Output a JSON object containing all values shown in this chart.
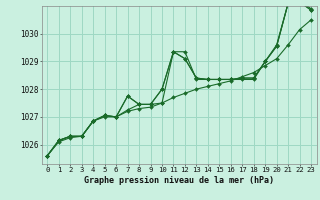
{
  "title": "Graphe pression niveau de la mer (hPa)",
  "bg_color": "#caf0e0",
  "grid_color": "#9ed8c4",
  "line_color": "#1a6b2a",
  "x_labels": [
    "0",
    "1",
    "2",
    "3",
    "4",
    "5",
    "6",
    "7",
    "8",
    "9",
    "10",
    "11",
    "12",
    "13",
    "14",
    "15",
    "16",
    "17",
    "18",
    "19",
    "20",
    "21",
    "22",
    "23"
  ],
  "ylim": [
    1025.3,
    1031.0
  ],
  "yticks": [
    1026,
    1027,
    1028,
    1029,
    1030
  ],
  "series": [
    [
      1025.6,
      1026.15,
      1026.3,
      1026.3,
      1026.85,
      1027.05,
      1027.0,
      1027.25,
      1027.45,
      1027.45,
      1027.5,
      1029.35,
      1029.35,
      1028.35,
      1028.35,
      1028.35,
      1028.35,
      1028.35,
      1028.35,
      1029.0,
      1029.6,
      1031.1,
      1031.2,
      1030.9
    ],
    [
      1025.6,
      1026.15,
      1026.3,
      1026.3,
      1026.85,
      1027.05,
      1027.0,
      1027.75,
      1027.45,
      1027.45,
      1028.0,
      1029.35,
      1029.1,
      1028.4,
      1028.35,
      1028.35,
      1028.35,
      1028.4,
      1028.4,
      1029.0,
      1029.55,
      1031.1,
      1031.15,
      1030.85
    ],
    [
      1025.6,
      1026.15,
      1026.3,
      1026.3,
      1026.85,
      1027.05,
      1027.0,
      1027.75,
      1027.45,
      1027.45,
      1028.0,
      1029.35,
      1029.1,
      1028.4,
      1028.35,
      1028.35,
      1028.35,
      1028.4,
      1028.4,
      1029.0,
      1029.55,
      1031.1,
      1031.15,
      1030.85
    ],
    [
      1025.6,
      1026.1,
      1026.25,
      1026.3,
      1026.85,
      1027.0,
      1027.0,
      1027.2,
      1027.3,
      1027.35,
      1027.5,
      1027.7,
      1027.85,
      1028.0,
      1028.1,
      1028.2,
      1028.3,
      1028.45,
      1028.6,
      1028.85,
      1029.1,
      1029.6,
      1030.15,
      1030.5
    ]
  ],
  "marker_series": [
    0,
    1,
    2,
    3
  ],
  "title_fontsize": 6.0,
  "tick_fontsize": 5.2
}
